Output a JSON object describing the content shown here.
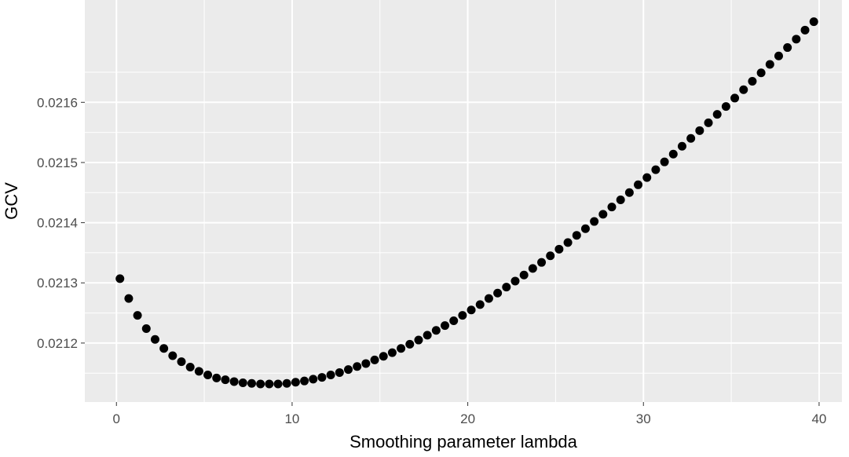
{
  "chart_data": {
    "type": "scatter",
    "title": "",
    "xlabel": "Smoothing parameter lambda",
    "ylabel": "GCV",
    "xlim": [
      -1.8,
      41.3
    ],
    "ylim": [
      0.021102,
      0.02177
    ],
    "x_ticks": [
      0,
      10,
      20,
      30,
      40
    ],
    "x_tick_labels": [
      "0",
      "10",
      "20",
      "30",
      "40"
    ],
    "y_ticks": [
      0.0212,
      0.0213,
      0.0214,
      0.0215,
      0.0216
    ],
    "y_tick_labels": [
      "0.0212",
      "0.0213",
      "0.0214",
      "0.0215",
      "0.0216"
    ],
    "grid": true,
    "legend": "none",
    "colors": {
      "panel": "#ebebeb",
      "grid": "#ffffff",
      "point": "#000000",
      "tick_text": "#4d4d4d",
      "axis_title": "#000000"
    },
    "series": [
      {
        "x": [
          0.2,
          0.7,
          1.2,
          1.7,
          2.2,
          2.7,
          3.2,
          3.7,
          4.2,
          4.7,
          5.2,
          5.7,
          6.2,
          6.7,
          7.2,
          7.7,
          8.2,
          8.7,
          9.2,
          9.7,
          10.2,
          10.7,
          11.2,
          11.7,
          12.2,
          12.7,
          13.2,
          13.7,
          14.2,
          14.7,
          15.2,
          15.7,
          16.2,
          16.7,
          17.2,
          17.7,
          18.2,
          18.7,
          19.2,
          19.7,
          20.2,
          20.7,
          21.2,
          21.7,
          22.2,
          22.7,
          23.2,
          23.7,
          24.2,
          24.7,
          25.2,
          25.7,
          26.2,
          26.7,
          27.2,
          27.7,
          28.2,
          28.7,
          29.2,
          29.7,
          30.2,
          30.7,
          31.2,
          31.7,
          32.2,
          32.7,
          33.2,
          33.7,
          34.2,
          34.7,
          35.2,
          35.7,
          36.2,
          36.7,
          37.2,
          37.7,
          38.2,
          38.7,
          39.2,
          39.7
        ],
        "y": [
          0.021307,
          0.021274,
          0.021246,
          0.021224,
          0.021206,
          0.021191,
          0.021179,
          0.021169,
          0.02116,
          0.021153,
          0.021147,
          0.021142,
          0.021139,
          0.021136,
          0.021134,
          0.021133,
          0.021132,
          0.021132,
          0.021132,
          0.021133,
          0.021135,
          0.021137,
          0.02114,
          0.021143,
          0.021147,
          0.021151,
          0.021156,
          0.021161,
          0.021166,
          0.021172,
          0.021178,
          0.021184,
          0.021191,
          0.021198,
          0.021205,
          0.021213,
          0.021221,
          0.021229,
          0.021237,
          0.021246,
          0.021255,
          0.021264,
          0.021274,
          0.021283,
          0.021293,
          0.021303,
          0.021313,
          0.021324,
          0.021334,
          0.021345,
          0.021356,
          0.021367,
          0.021379,
          0.02139,
          0.021402,
          0.021414,
          0.021426,
          0.021438,
          0.02145,
          0.021463,
          0.021475,
          0.021488,
          0.021501,
          0.021514,
          0.021527,
          0.02154,
          0.021553,
          0.021566,
          0.02158,
          0.021593,
          0.021607,
          0.021621,
          0.021635,
          0.021649,
          0.021663,
          0.021677,
          0.021691,
          0.021705,
          0.02172,
          0.021734
        ]
      }
    ]
  }
}
